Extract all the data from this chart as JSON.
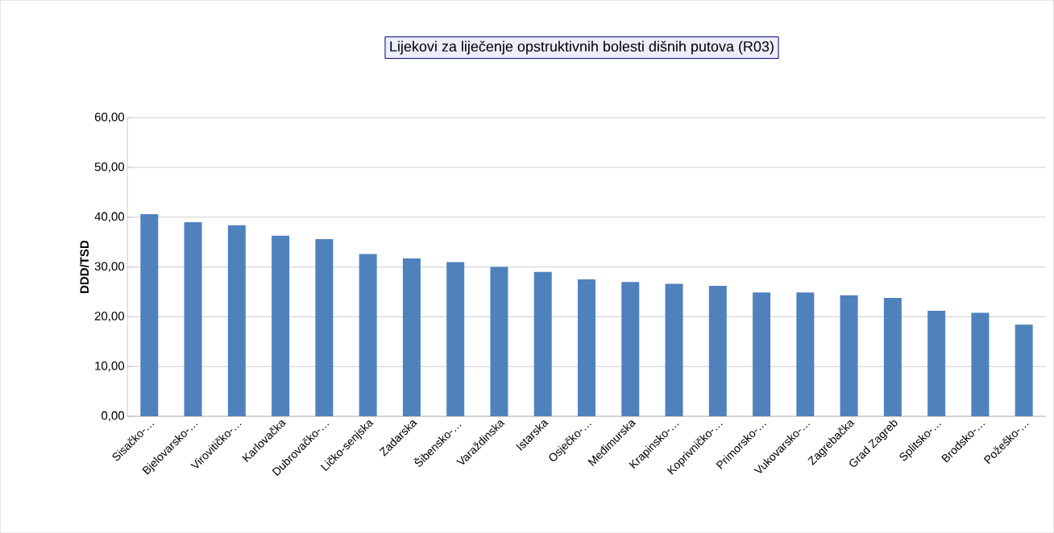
{
  "chart_data": {
    "type": "bar",
    "title": "Lijekovi za liječenje opstruktivnih bolesti dišnih putova (R03)",
    "ylabel": "DDD/TSD",
    "categories": [
      "Sisačko-…",
      "Bjelovarsko-…",
      "Virovitičko-…",
      "Karlovačka",
      "Dubrovačko-…",
      "Ličko-senjska",
      "Zadarska",
      "Šibensko-…",
      "Varaždinska",
      "Istarska",
      "Osječko-…",
      "Međimurska",
      "Krapinsko-…",
      "Koprivničko-…",
      "Primorsko-…",
      "Vukovarsko-…",
      "Zagrebačka",
      "Grad Zagreb",
      "Splitsko-…",
      "Brodsko-…",
      "Požeško-…"
    ],
    "values": [
      40.6,
      39.0,
      38.4,
      36.3,
      35.6,
      32.6,
      31.7,
      31.0,
      30.0,
      29.0,
      27.5,
      27.0,
      26.6,
      26.2,
      24.9,
      24.9,
      24.3,
      23.8,
      21.2,
      20.8,
      18.4
    ],
    "color": "#4f81bd",
    "ylim": [
      0,
      60
    ],
    "yticks": [
      {
        "value": 0,
        "label": "0,00"
      },
      {
        "value": 10,
        "label": "10,00"
      },
      {
        "value": 20,
        "label": "20,00"
      },
      {
        "value": 30,
        "label": "30,00"
      },
      {
        "value": 40,
        "label": "40,00"
      },
      {
        "value": 50,
        "label": "50,00"
      },
      {
        "value": 60,
        "label": "60,00"
      }
    ],
    "grid": "y"
  }
}
